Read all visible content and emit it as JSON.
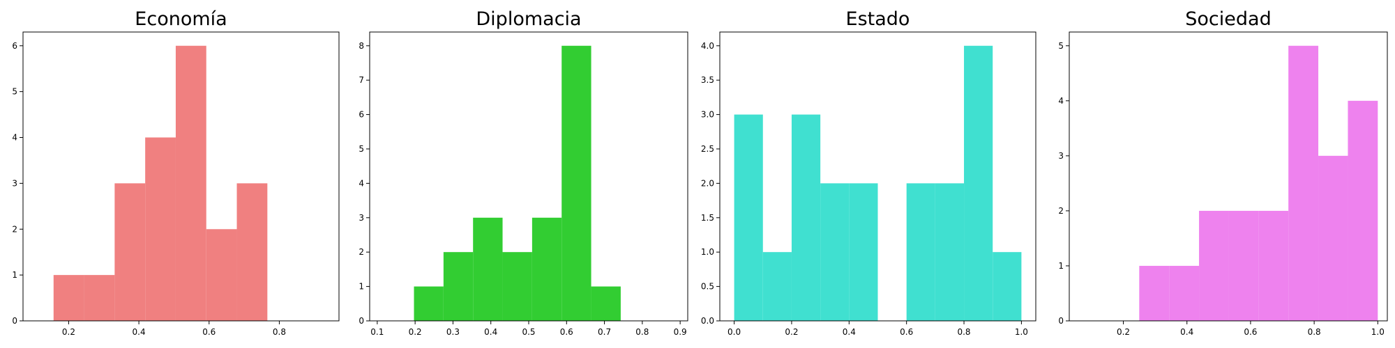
{
  "chart_data": [
    {
      "type": "bar",
      "title": "Economía",
      "color": "#f08080",
      "xlim": [
        0.07,
        0.97
      ],
      "ylim": [
        0,
        6.3
      ],
      "xticks": [
        0.2,
        0.4,
        0.6,
        0.8
      ],
      "xtick_labels": [
        "0.2",
        "0.4",
        "0.6",
        "0.8"
      ],
      "yticks": [
        0,
        1,
        2,
        3,
        4,
        5,
        6
      ],
      "ytick_labels": [
        "0",
        "1",
        "2",
        "3",
        "4",
        "5",
        "6"
      ],
      "bin_edges": [
        0.157,
        0.244,
        0.331,
        0.418,
        0.505,
        0.592,
        0.679,
        0.766
      ],
      "counts": [
        1,
        1,
        3,
        4,
        6,
        2,
        3
      ]
    },
    {
      "type": "bar",
      "title": "Diplomacia",
      "color": "#32cd32",
      "xlim": [
        0.08,
        0.92
      ],
      "ylim": [
        0,
        8.4
      ],
      "xticks": [
        0.1,
        0.2,
        0.3,
        0.4,
        0.5,
        0.6,
        0.7,
        0.8,
        0.9
      ],
      "xtick_labels": [
        "0.1",
        "0.2",
        "0.3",
        "0.4",
        "0.5",
        "0.6",
        "0.7",
        "0.8",
        "0.9"
      ],
      "yticks": [
        0,
        1,
        2,
        3,
        4,
        5,
        6,
        7,
        8
      ],
      "ytick_labels": [
        "0",
        "1",
        "2",
        "3",
        "4",
        "5",
        "6",
        "7",
        "8"
      ],
      "bin_edges": [
        0.197,
        0.275,
        0.353,
        0.431,
        0.509,
        0.587,
        0.665,
        0.743
      ],
      "counts": [
        1,
        2,
        3,
        2,
        3,
        8,
        1
      ]
    },
    {
      "type": "bar",
      "title": "Estado",
      "color": "#40e0d0",
      "xlim": [
        -0.05,
        1.05
      ],
      "ylim": [
        0,
        4.2
      ],
      "xticks": [
        0.0,
        0.2,
        0.4,
        0.6,
        0.8,
        1.0
      ],
      "xtick_labels": [
        "0.0",
        "0.2",
        "0.4",
        "0.6",
        "0.8",
        "1.0"
      ],
      "yticks": [
        0,
        0.5,
        1.0,
        1.5,
        2.0,
        2.5,
        3.0,
        3.5,
        4.0
      ],
      "ytick_labels": [
        "0.0",
        "0.5",
        "1.0",
        "1.5",
        "2.0",
        "2.5",
        "3.0",
        "3.5",
        "4.0"
      ],
      "bin_edges": [
        0.0,
        0.1,
        0.2,
        0.3,
        0.4,
        0.5,
        0.6,
        0.7,
        0.8,
        0.9,
        1.0
      ],
      "counts": [
        3,
        1,
        3,
        2,
        2,
        0,
        2,
        2,
        4,
        1
      ]
    },
    {
      "type": "bar",
      "title": "Sociedad",
      "color": "#ee82ee",
      "xlim": [
        0.03,
        1.03
      ],
      "ylim": [
        0,
        5.25
      ],
      "xticks": [
        0.2,
        0.4,
        0.6,
        0.8,
        1.0
      ],
      "xtick_labels": [
        "0.2",
        "0.4",
        "0.6",
        "0.8",
        "1.0"
      ],
      "yticks": [
        0,
        1,
        2,
        3,
        4,
        5
      ],
      "ytick_labels": [
        "0",
        "1",
        "2",
        "3",
        "4",
        "5"
      ],
      "bin_edges": [
        0.25,
        0.344,
        0.438,
        0.531,
        0.625,
        0.719,
        0.813,
        0.906,
        1.0
      ],
      "counts": [
        1,
        1,
        2,
        2,
        2,
        5,
        3,
        4
      ]
    }
  ]
}
